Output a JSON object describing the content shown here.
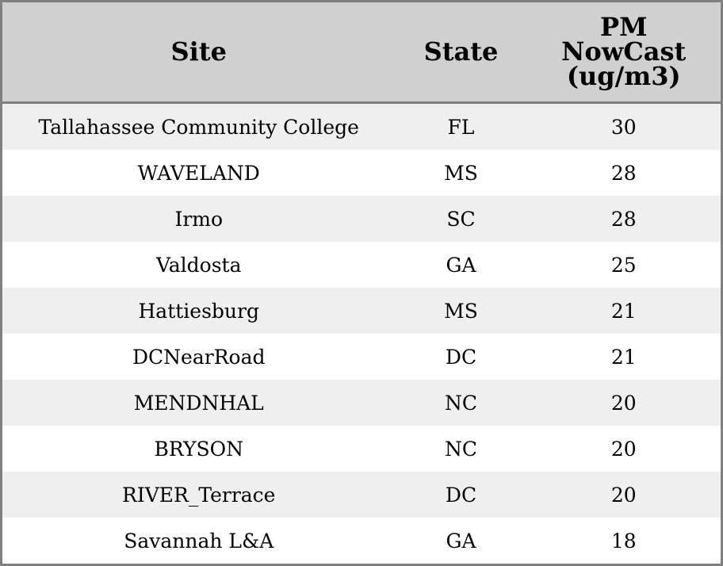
{
  "table": {
    "headers": [
      "Site",
      "State",
      "PM NowCast (ug/m3)"
    ],
    "header_lines": [
      "PM",
      "NowCast",
      "(ug/m3)"
    ],
    "rows": [
      {
        "site": "Tallahassee Community College",
        "state": "FL",
        "pm": "30"
      },
      {
        "site": "WAVELAND",
        "state": "MS",
        "pm": "28"
      },
      {
        "site": "Irmo",
        "state": "SC",
        "pm": "28"
      },
      {
        "site": "Valdosta",
        "state": "GA",
        "pm": "25"
      },
      {
        "site": "Hattiesburg",
        "state": "MS",
        "pm": "21"
      },
      {
        "site": "DCNearRoad",
        "state": "DC",
        "pm": "21"
      },
      {
        "site": "MENDNHAL",
        "state": "NC",
        "pm": "20"
      },
      {
        "site": "BRYSON",
        "state": "NC",
        "pm": "20"
      },
      {
        "site": "RIVER_Terrace",
        "state": "DC",
        "pm": "20"
      },
      {
        "site": "Savannah L&A",
        "state": "GA",
        "pm": "18"
      }
    ]
  },
  "colors": {
    "header_bg": "#d0d0d0",
    "stripe_bg": "#efefef",
    "border": "#808080"
  }
}
